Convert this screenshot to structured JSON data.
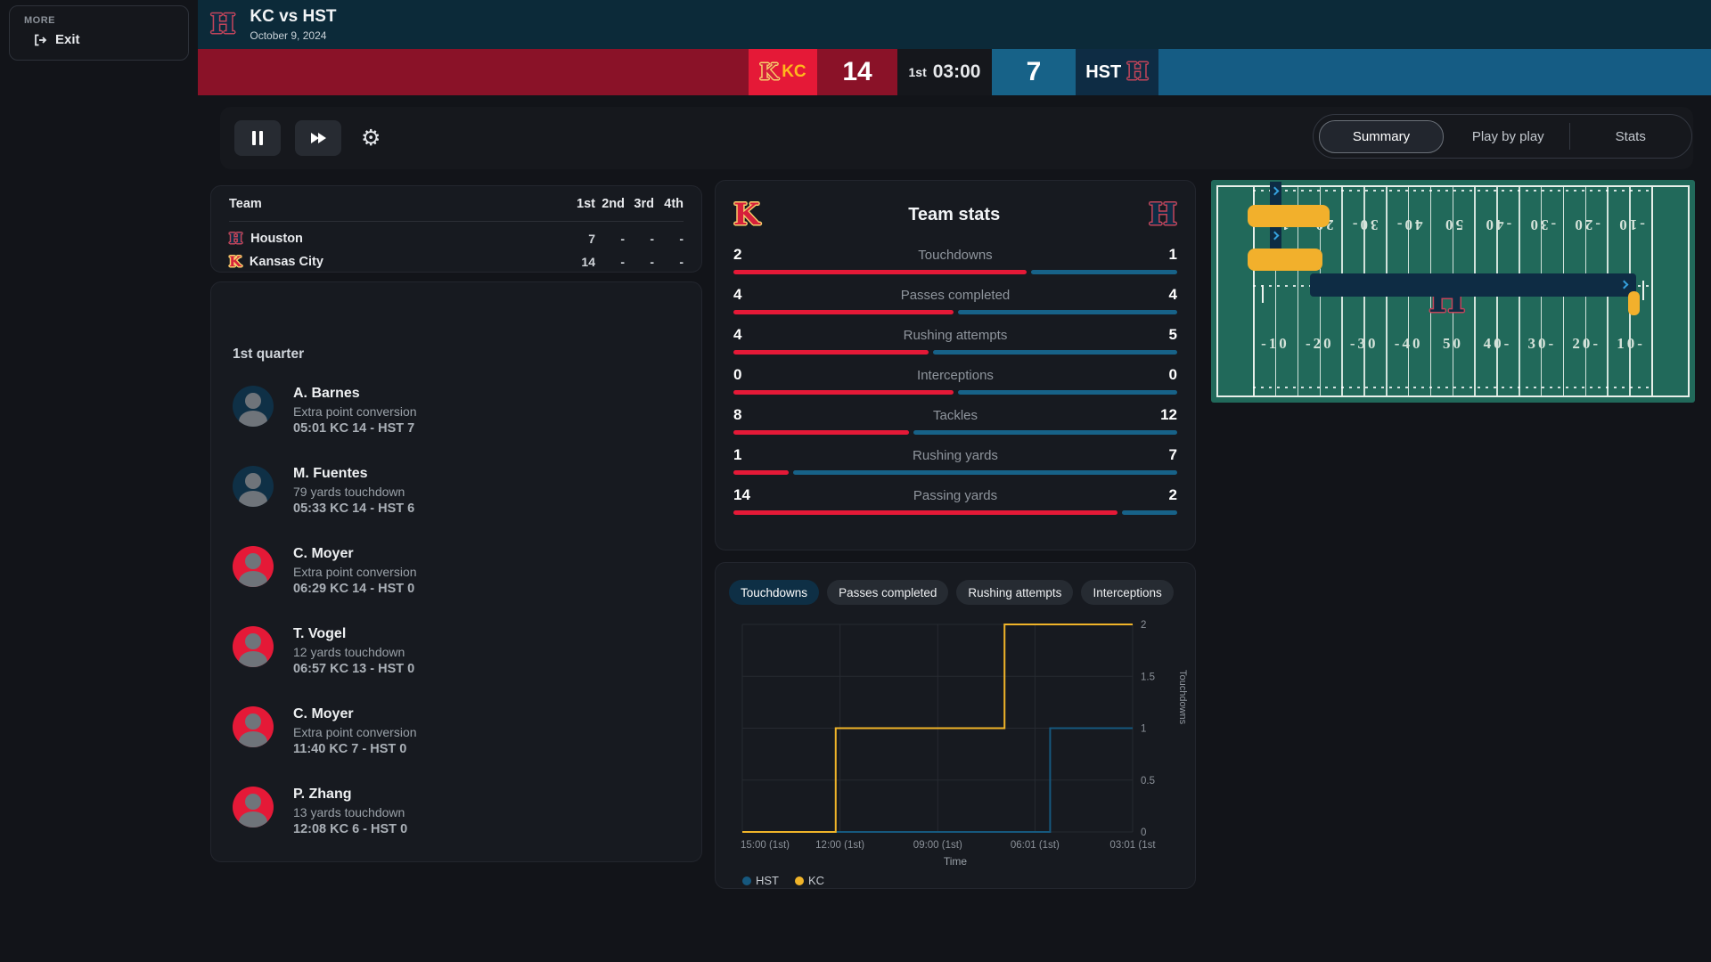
{
  "more_panel": {
    "label": "MORE",
    "exit_label": "Exit"
  },
  "header": {
    "title": "KC vs HST",
    "date": "October 9, 2024",
    "logo_letter": "H"
  },
  "scoreboard": {
    "kc_logo": "K",
    "kc_abbr": "KC",
    "kc_score": "14",
    "period": "1st",
    "clock": "03:00",
    "hst_score": "7",
    "hst_abbr": "HST",
    "hst_logo": "H"
  },
  "toolbar": {
    "gear_icon": "⚙",
    "tabs": [
      {
        "label": "Summary",
        "active": true
      },
      {
        "label": "Play by play",
        "active": false
      },
      {
        "label": "Stats",
        "active": false
      }
    ]
  },
  "score_table": {
    "team_header": "Team",
    "quarter_headers": [
      "1st",
      "2nd",
      "3rd",
      "4th"
    ],
    "rows": [
      {
        "team": "Houston",
        "logo": "H",
        "values": [
          "7",
          "-",
          "-",
          "-"
        ]
      },
      {
        "team": "Kansas City",
        "logo": "K",
        "values": [
          "14",
          "-",
          "-",
          "-"
        ]
      }
    ]
  },
  "playlist": {
    "quarter_label": "1st quarter",
    "plays": [
      {
        "team": "hst",
        "name": "A. Barnes",
        "desc": "Extra point conversion",
        "score": "05:01 KC 14 - HST 7"
      },
      {
        "team": "hst",
        "name": "M. Fuentes",
        "desc": "79 yards touchdown",
        "score": "05:33 KC 14 - HST 6"
      },
      {
        "team": "kc",
        "name": "C. Moyer",
        "desc": "Extra point conversion",
        "score": "06:29 KC 14 - HST 0"
      },
      {
        "team": "kc",
        "name": "T. Vogel",
        "desc": "12 yards touchdown",
        "score": "06:57 KC 13 - HST 0"
      },
      {
        "team": "kc",
        "name": "C. Moyer",
        "desc": "Extra point conversion",
        "score": "11:40 KC 7 - HST 0"
      },
      {
        "team": "kc",
        "name": "P. Zhang",
        "desc": "13 yards touchdown",
        "score": "12:08 KC 6 - HST 0"
      }
    ]
  },
  "team_stats": {
    "title": "Team stats",
    "kc_logo": "K",
    "hst_logo": "H",
    "rows": [
      {
        "label": "Touchdowns",
        "kc": 2,
        "hst": 1
      },
      {
        "label": "Passes completed",
        "kc": 4,
        "hst": 4
      },
      {
        "label": "Rushing attempts",
        "kc": 4,
        "hst": 5
      },
      {
        "label": "Interceptions",
        "kc": 0,
        "hst": 0
      },
      {
        "label": "Tackles",
        "kc": 8,
        "hst": 12
      },
      {
        "label": "Rushing yards",
        "kc": 1,
        "hst": 7
      },
      {
        "label": "Passing yards",
        "kc": 14,
        "hst": 2
      }
    ]
  },
  "chart": {
    "chips": [
      {
        "label": "Touchdowns",
        "active": true
      },
      {
        "label": "Passes completed",
        "active": false
      },
      {
        "label": "Rushing attempts",
        "active": false
      },
      {
        "label": "Interceptions",
        "active": false
      }
    ],
    "xlabel": "Time",
    "ylabel": "Touchdowns",
    "legend": [
      {
        "label": "HST",
        "color": "#16587e"
      },
      {
        "label": "KC",
        "color": "#f0b429"
      }
    ]
  },
  "chart_data": {
    "type": "line",
    "subtype": "step",
    "title": "Touchdowns over time",
    "xlabel": "Time",
    "ylabel": "Touchdowns",
    "x_unit": "game clock remaining, seconds (1st quarter)",
    "xrange": [
      900,
      181
    ],
    "ylim": [
      0,
      2
    ],
    "yticks": [
      0,
      0.5,
      1,
      1.5,
      2
    ],
    "xticks": [
      900,
      720,
      540,
      361,
      181
    ],
    "xtick_labels": [
      "15:00 (1st)",
      "12:00 (1st)",
      "09:00 (1st)",
      "06:01 (1st)",
      "03:01 (1st"
    ],
    "grid": true,
    "legend_position": "bottom-left",
    "series": [
      {
        "name": "HST",
        "color": "#16587e",
        "steps": [
          [
            900,
            0
          ],
          [
            333,
            1
          ],
          [
            181,
            1
          ]
        ]
      },
      {
        "name": "KC",
        "color": "#f0b429",
        "steps": [
          [
            900,
            0
          ],
          [
            728,
            1
          ],
          [
            417,
            2
          ],
          [
            181,
            2
          ]
        ]
      }
    ]
  },
  "field": {
    "numbers": [
      "-10",
      "-20",
      "-30",
      "-40",
      "50",
      "40-",
      "30-",
      "20-",
      "10-"
    ]
  },
  "colors": {
    "kc_red": "#e51937",
    "kc_yellow": "#ffb81c",
    "hst_blue": "#176288",
    "hst_navy": "#0e2c44",
    "maroon": "#8a1228",
    "teal_banner": "#155c84",
    "header_teal": "#0c2a39",
    "field_green": "#21695a",
    "marker_yellow": "#f2b02c"
  }
}
